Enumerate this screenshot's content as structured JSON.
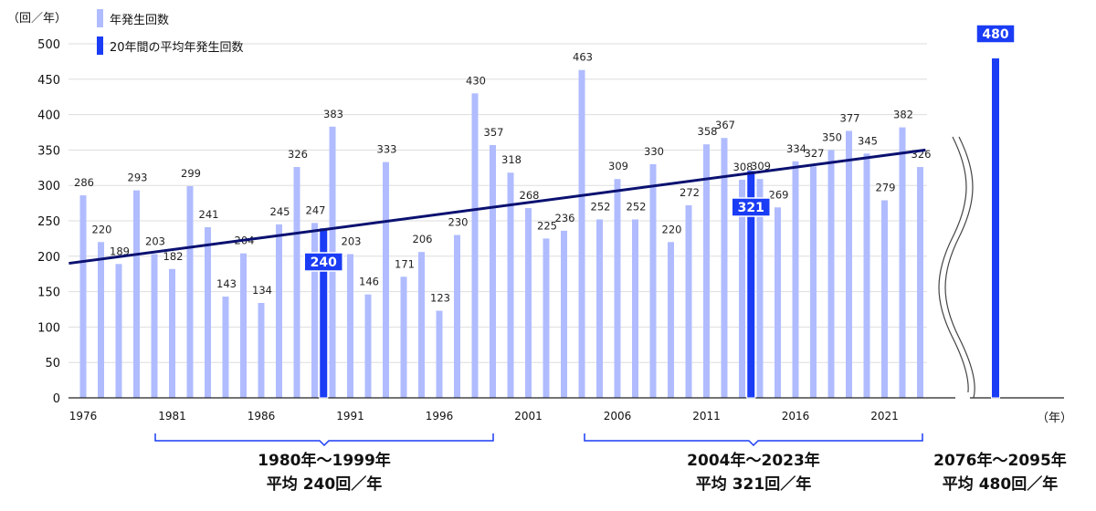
{
  "chart_data": {
    "type": "bar",
    "yunit": "（回／年）",
    "xunit": "（年）",
    "ylim": [
      0,
      500
    ],
    "yticks": [
      0,
      50,
      100,
      150,
      200,
      250,
      300,
      350,
      400,
      450,
      500
    ],
    "grid": true,
    "legend_placement": "top-left",
    "x": [
      1976,
      1977,
      1978,
      1979,
      1980,
      1981,
      1982,
      1983,
      1984,
      1985,
      1986,
      1987,
      1988,
      1989,
      1990,
      1991,
      1992,
      1993,
      1994,
      1995,
      1996,
      1997,
      1998,
      1999,
      2000,
      2001,
      2002,
      2003,
      2004,
      2005,
      2006,
      2007,
      2008,
      2009,
      2010,
      2011,
      2012,
      2013,
      2014,
      2015,
      2016,
      2017,
      2018,
      2019,
      2020,
      2021,
      2022,
      2023
    ],
    "xtick_labels": [
      "1976",
      "1981",
      "1986",
      "1991",
      "1996",
      "2001",
      "2006",
      "2011",
      "2016",
      "2021"
    ],
    "series": [
      {
        "name": "年発生回数",
        "color": "#b0bcff",
        "values": [
          286,
          220,
          189,
          293,
          203,
          182,
          299,
          241,
          143,
          204,
          134,
          245,
          326,
          247,
          383,
          203,
          146,
          333,
          171,
          206,
          123,
          230,
          430,
          357,
          318,
          268,
          225,
          236,
          463,
          252,
          309,
          252,
          330,
          220,
          272,
          358,
          367,
          308,
          309,
          269,
          334,
          327,
          350,
          377,
          345,
          279,
          382,
          326
        ]
      },
      {
        "name": "20年間の平均年発生回数",
        "color": "#1a3cf5",
        "values": [
          {
            "period": "1980年〜1999年",
            "value": 240,
            "caption": [
              "1980年〜1999年",
              "平均 240回／年"
            ]
          },
          {
            "period": "2004年〜2023年",
            "value": 321,
            "caption": [
              "2004年〜2023年",
              "平均 321回／年"
            ]
          },
          {
            "period": "2076年〜2095年",
            "value": 480,
            "caption": [
              "2076年〜2095年",
              "平均 480回／年"
            ]
          }
        ]
      }
    ],
    "trendline": {
      "color": "#0a1170",
      "start": [
        1975.2,
        190
      ],
      "end": [
        2023.3,
        350
      ]
    }
  }
}
